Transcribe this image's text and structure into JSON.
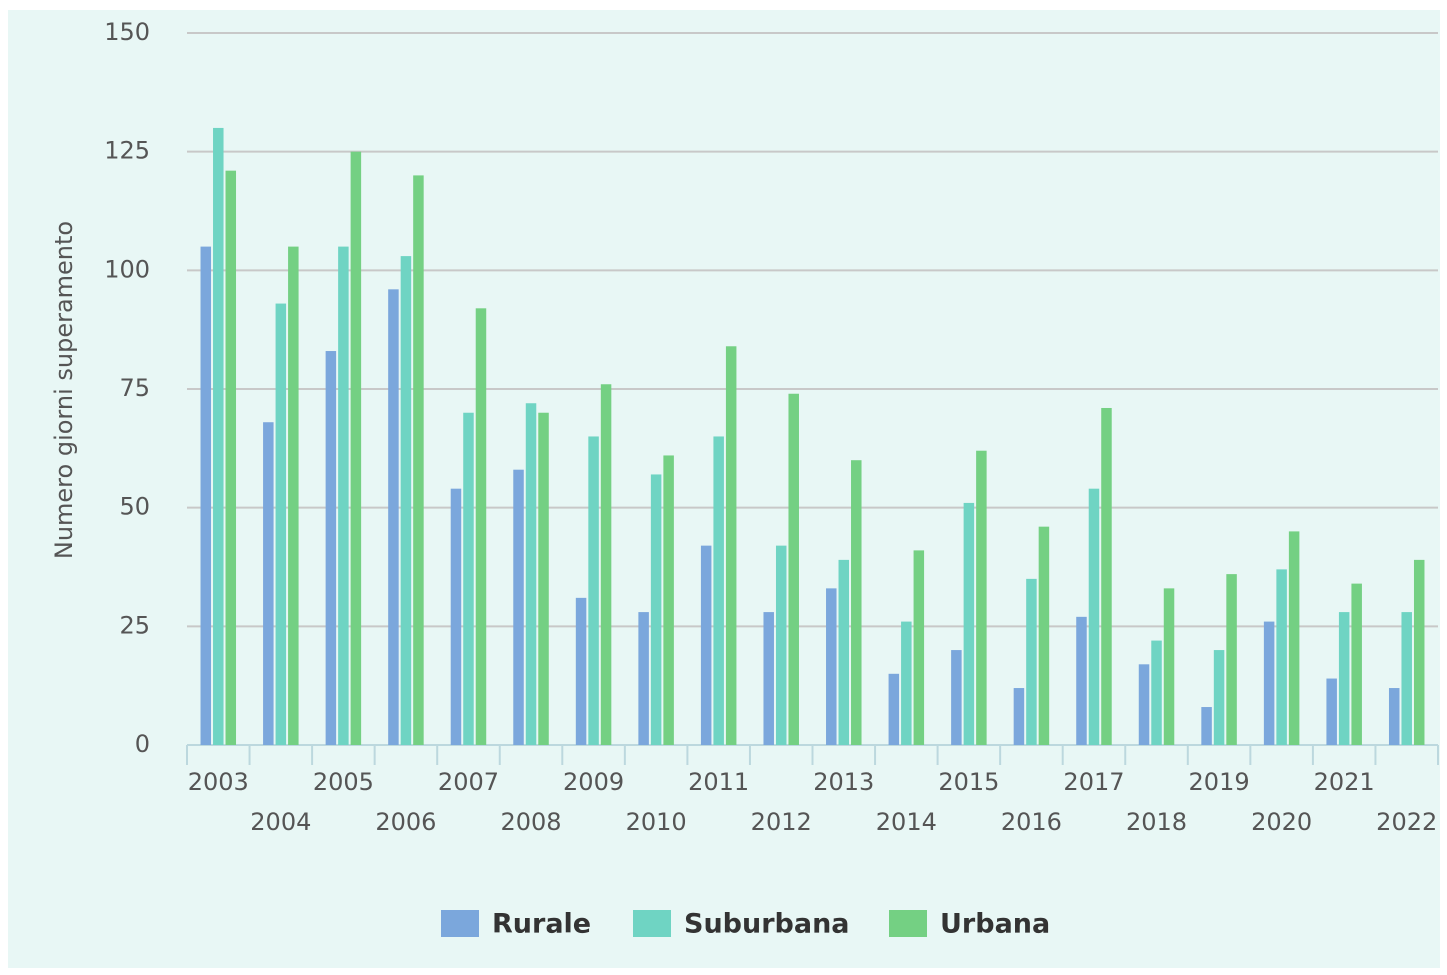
{
  "chart_data": {
    "type": "bar",
    "y_label": "Numero giorni superamento",
    "categories": [
      "2003",
      "2004",
      "2005",
      "2006",
      "2007",
      "2008",
      "2009",
      "2010",
      "2011",
      "2012",
      "2013",
      "2014",
      "2015",
      "2016",
      "2017",
      "2018",
      "2019",
      "2020",
      "2021",
      "2022"
    ],
    "series": [
      {
        "name": "Rurale",
        "color": "#7ba7dc",
        "values": [
          105,
          68,
          83,
          96,
          54,
          58,
          31,
          28,
          42,
          28,
          33,
          15,
          20,
          12,
          27,
          17,
          8,
          26,
          14,
          12
        ]
      },
      {
        "name": "Suburbana",
        "color": "#6fd4c3",
        "values": [
          130,
          93,
          105,
          103,
          70,
          72,
          65,
          57,
          65,
          42,
          39,
          26,
          51,
          35,
          54,
          22,
          20,
          37,
          28,
          28
        ]
      },
      {
        "name": "Urbana",
        "color": "#74d083",
        "values": [
          121,
          105,
          125,
          120,
          92,
          70,
          76,
          61,
          84,
          74,
          60,
          41,
          62,
          46,
          71,
          33,
          36,
          45,
          34,
          39
        ]
      }
    ],
    "ylim": [
      0,
      150
    ],
    "yticks": [
      0,
      25,
      50,
      75,
      100,
      125,
      150
    ],
    "grid": true,
    "legend": "bottom"
  }
}
